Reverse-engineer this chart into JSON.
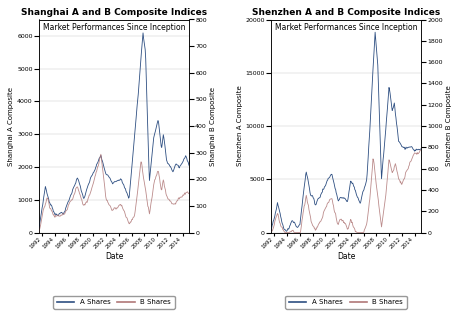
{
  "title_left": "Shanghai A and B Composite Indices",
  "subtitle_left": "Market Performances Since Inception",
  "title_right": "Shenzhen A and B Composite Indices",
  "subtitle_right": "Market Performances Since Inception",
  "xlabel": "Date",
  "ylabel_left_a": "Shanghai A Composite",
  "ylabel_left_b": "Shanghai B Composite",
  "ylabel_right_a": "Shenzhen A Composite",
  "ylabel_right_b": "Shenzhen B Composite",
  "color_a": "#2E4F82",
  "color_b": "#B07878",
  "background": "#FFFFFF",
  "legend_a": "A Shares",
  "legend_b": "B Shares",
  "sh_a_ylim": [
    0,
    6500
  ],
  "sh_b_ylim": [
    0,
    800
  ],
  "sz_a_ylim": [
    0,
    20000
  ],
  "sz_b_ylim": [
    0,
    2000
  ],
  "sh_a_yticks": [
    0,
    1000,
    2000,
    3000,
    4000,
    5000,
    6000
  ],
  "sh_b_yticks": [
    0,
    100,
    200,
    300,
    400,
    500,
    600,
    700,
    800
  ],
  "sz_a_yticks": [
    0,
    5000,
    10000,
    15000,
    20000
  ],
  "sz_b_yticks": [
    0,
    200,
    400,
    600,
    800,
    1000,
    1200,
    1400,
    1600,
    1800,
    2000
  ]
}
